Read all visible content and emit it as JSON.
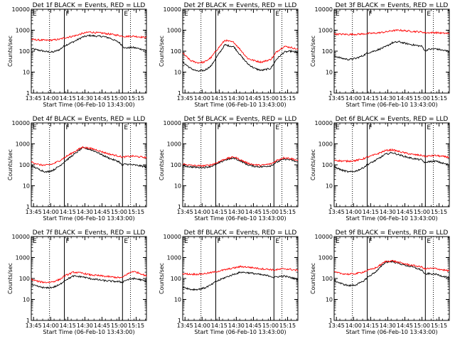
{
  "chart_data": {
    "type": "line",
    "layout": "3x3 grid",
    "yscale": "log",
    "ylim": [
      1,
      10000
    ],
    "xlim": [
      "13:43",
      "15:24"
    ],
    "ylabel": "Counts/sec",
    "xlabel": "Start Time (06-Feb-10 13:43:00)",
    "x_ticks": [
      "13:45",
      "14:00",
      "14:15",
      "14:30",
      "14:45",
      "15:00",
      "15:15"
    ],
    "y_ticks": [
      "1",
      "10",
      "100",
      "1000",
      "10000"
    ],
    "colors": {
      "events": "#000000",
      "lld": "#ff0000"
    },
    "panels": [
      {
        "title": "Det 1f BLACK = Events, RED = LLD",
        "flags": [
          {
            "time": "13:43",
            "label": "E"
          },
          {
            "time": "14:12",
            "label": "F"
          },
          {
            "time": "15:03",
            "label": "E"
          }
        ],
        "markers": [
          {
            "time": "13:59",
            "style": "dotted"
          },
          {
            "time": "14:12",
            "style": "solid"
          },
          {
            "time": "15:03",
            "style": "solid"
          },
          {
            "time": "15:10",
            "style": "dotted"
          }
        ],
        "x": [
          "13:43",
          "13:50",
          "13:56",
          "14:02",
          "14:08",
          "14:12",
          "14:20",
          "14:28",
          "14:34",
          "14:40",
          "14:46",
          "14:52",
          "15:00",
          "15:03",
          "15:05",
          "15:12",
          "15:18",
          "15:24"
        ],
        "series": [
          {
            "name": "Events",
            "values": [
              130,
              110,
              95,
              90,
              120,
              180,
              280,
              470,
              560,
              520,
              500,
              420,
              260,
              180,
              140,
              150,
              130,
              110
            ]
          },
          {
            "name": "LLD",
            "values": [
              360,
              340,
              330,
              340,
              370,
              430,
              520,
              700,
              820,
              760,
              720,
              650,
              560,
              520,
              500,
              520,
              480,
              450
            ]
          }
        ]
      },
      {
        "title": "Det 2f BLACK = Events, RED = LLD",
        "flags": [
          {
            "time": "13:43",
            "label": "E"
          },
          {
            "time": "14:12",
            "label": "F"
          },
          {
            "time": "15:03",
            "label": "E"
          }
        ],
        "markers": [
          {
            "time": "13:59",
            "style": "dotted"
          },
          {
            "time": "14:12",
            "style": "solid"
          },
          {
            "time": "15:03",
            "style": "solid"
          },
          {
            "time": "15:10",
            "style": "dotted"
          }
        ],
        "x": [
          "13:43",
          "13:50",
          "13:56",
          "14:02",
          "14:08",
          "14:12",
          "14:20",
          "14:28",
          "14:34",
          "14:40",
          "14:46",
          "14:52",
          "15:00",
          "15:03",
          "15:05",
          "15:12",
          "15:18",
          "15:24"
        ],
        "series": [
          {
            "name": "Events",
            "values": [
              30,
              15,
              11,
              12,
              20,
              45,
              200,
              160,
              60,
              25,
              15,
              12,
              15,
              25,
              40,
              90,
              100,
              80
            ]
          },
          {
            "name": "LLD",
            "values": [
              80,
              35,
              28,
              30,
              50,
              100,
              330,
              260,
              110,
              45,
              35,
              30,
              40,
              60,
              90,
              170,
              150,
              120
            ]
          }
        ]
      },
      {
        "title": "Det 3f BLACK = Events, RED = LLD",
        "flags": [
          {
            "time": "13:43",
            "label": "E"
          },
          {
            "time": "14:12",
            "label": "F"
          },
          {
            "time": "15:03",
            "label": "E"
          }
        ],
        "markers": [
          {
            "time": "13:59",
            "style": "dotted"
          },
          {
            "time": "14:12",
            "style": "solid"
          },
          {
            "time": "15:03",
            "style": "solid"
          },
          {
            "time": "15:10",
            "style": "dotted"
          }
        ],
        "x": [
          "13:43",
          "13:50",
          "13:56",
          "14:02",
          "14:08",
          "14:12",
          "14:20",
          "14:28",
          "14:34",
          "14:40",
          "14:46",
          "14:52",
          "15:00",
          "15:03",
          "15:05",
          "15:12",
          "15:18",
          "15:24"
        ],
        "series": [
          {
            "name": "Events",
            "values": [
              60,
              45,
              40,
              45,
              60,
              80,
              110,
              160,
              250,
              280,
              230,
              200,
              170,
              100,
              120,
              130,
              110,
              100
            ]
          },
          {
            "name": "LLD",
            "values": [
              650,
              640,
              630,
              640,
              660,
              690,
              730,
              820,
              950,
              1000,
              930,
              880,
              820,
              750,
              760,
              770,
              720,
              700
            ]
          }
        ]
      },
      {
        "title": "Det 4f BLACK = Events, RED = LLD",
        "flags": [
          {
            "time": "13:43",
            "label": "E"
          },
          {
            "time": "14:12",
            "label": "F"
          },
          {
            "time": "15:03",
            "label": "E"
          }
        ],
        "markers": [
          {
            "time": "13:59",
            "style": "dotted"
          },
          {
            "time": "14:12",
            "style": "solid"
          },
          {
            "time": "15:03",
            "style": "solid"
          },
          {
            "time": "15:10",
            "style": "dotted"
          }
        ],
        "x": [
          "13:43",
          "13:50",
          "13:56",
          "14:02",
          "14:08",
          "14:12",
          "14:20",
          "14:28",
          "14:34",
          "14:40",
          "14:46",
          "14:52",
          "15:00",
          "15:03",
          "15:05",
          "15:12",
          "15:18",
          "15:24"
        ],
        "series": [
          {
            "name": "Events",
            "values": [
              90,
              60,
              45,
              55,
              90,
              140,
              300,
              650,
              550,
              420,
              280,
              200,
              140,
              90,
              110,
              100,
              90,
              80
            ]
          },
          {
            "name": "LLD",
            "values": [
              140,
              100,
              95,
              110,
              160,
              220,
              400,
              700,
              620,
              520,
              400,
              320,
              260,
              230,
              240,
              260,
              240,
              220
            ]
          }
        ]
      },
      {
        "title": "Det 5f BLACK = Events, RED = LLD",
        "flags": [
          {
            "time": "13:43",
            "label": "E"
          },
          {
            "time": "14:12",
            "label": "F"
          },
          {
            "time": "15:03",
            "label": "E"
          }
        ],
        "markers": [
          {
            "time": "13:59",
            "style": "dotted"
          },
          {
            "time": "14:12",
            "style": "solid"
          },
          {
            "time": "15:03",
            "style": "solid"
          },
          {
            "time": "15:10",
            "style": "dotted"
          }
        ],
        "x": [
          "13:43",
          "13:50",
          "13:56",
          "14:02",
          "14:08",
          "14:12",
          "14:20",
          "14:28",
          "14:34",
          "14:40",
          "14:46",
          "14:52",
          "15:00",
          "15:03",
          "15:05",
          "15:12",
          "15:18",
          "15:24"
        ],
        "series": [
          {
            "name": "Events",
            "values": [
              90,
              80,
              75,
              75,
              85,
              100,
              170,
              210,
              150,
              100,
              85,
              80,
              90,
              110,
              130,
              190,
              170,
              130
            ]
          },
          {
            "name": "LLD",
            "values": [
              110,
              95,
              90,
              90,
              100,
              120,
              190,
              240,
              170,
              120,
              100,
              95,
              110,
              130,
              160,
              220,
              200,
              160
            ]
          }
        ]
      },
      {
        "title": "Det 6f BLACK = Events, RED = LLD",
        "flags": [
          {
            "time": "13:43",
            "label": "E"
          },
          {
            "time": "14:12",
            "label": "F"
          },
          {
            "time": "15:03",
            "label": "E"
          }
        ],
        "markers": [
          {
            "time": "13:59",
            "style": "dotted"
          },
          {
            "time": "14:12",
            "style": "solid"
          },
          {
            "time": "15:03",
            "style": "solid"
          },
          {
            "time": "15:10",
            "style": "dotted"
          }
        ],
        "x": [
          "13:43",
          "13:50",
          "13:56",
          "14:02",
          "14:08",
          "14:12",
          "14:20",
          "14:28",
          "14:34",
          "14:40",
          "14:46",
          "14:52",
          "15:00",
          "15:03",
          "15:05",
          "15:12",
          "15:18",
          "15:24"
        ],
        "series": [
          {
            "name": "Events",
            "values": [
              80,
              55,
              45,
              50,
              70,
              100,
              170,
              320,
              380,
              300,
              240,
              200,
              170,
              120,
              140,
              150,
              120,
              100
            ]
          },
          {
            "name": "LLD",
            "values": [
              170,
              150,
              150,
              160,
              190,
              230,
              320,
              480,
              520,
              430,
              360,
              310,
              280,
              250,
              260,
              280,
              250,
              230
            ]
          }
        ]
      },
      {
        "title": "Det 7f BLACK = Events, RED = LLD",
        "flags": [
          {
            "time": "13:43",
            "label": "E"
          },
          {
            "time": "14:12",
            "label": "F"
          },
          {
            "time": "15:03",
            "label": "E"
          }
        ],
        "markers": [
          {
            "time": "13:59",
            "style": "dotted"
          },
          {
            "time": "14:12",
            "style": "solid"
          },
          {
            "time": "15:03",
            "style": "solid"
          },
          {
            "time": "15:10",
            "style": "dotted"
          }
        ],
        "x": [
          "13:43",
          "13:50",
          "13:56",
          "14:02",
          "14:08",
          "14:12",
          "14:20",
          "14:28",
          "14:34",
          "14:40",
          "14:46",
          "14:52",
          "15:00",
          "15:03",
          "15:05",
          "15:12",
          "15:18",
          "15:24"
        ],
        "series": [
          {
            "name": "Events",
            "values": [
              50,
              40,
              35,
              38,
              50,
              80,
              130,
              120,
              100,
              90,
              80,
              75,
              70,
              65,
              80,
              100,
              90,
              70
            ]
          },
          {
            "name": "LLD",
            "values": [
              90,
              70,
              65,
              70,
              90,
              130,
              200,
              180,
              150,
              140,
              130,
              120,
              110,
              110,
              140,
              220,
              180,
              130
            ]
          }
        ]
      },
      {
        "title": "Det 8f BLACK = Events, RED = LLD",
        "flags": [
          {
            "time": "13:43",
            "label": "E"
          },
          {
            "time": "14:12",
            "label": "F"
          },
          {
            "time": "15:03",
            "label": "E"
          }
        ],
        "markers": [
          {
            "time": "13:59",
            "style": "dotted"
          },
          {
            "time": "14:12",
            "style": "solid"
          },
          {
            "time": "15:03",
            "style": "solid"
          },
          {
            "time": "15:10",
            "style": "dotted"
          }
        ],
        "x": [
          "13:43",
          "13:50",
          "13:56",
          "14:02",
          "14:08",
          "14:12",
          "14:20",
          "14:28",
          "14:34",
          "14:40",
          "14:46",
          "14:52",
          "15:00",
          "15:03",
          "15:05",
          "15:12",
          "15:18",
          "15:24"
        ],
        "series": [
          {
            "name": "Events",
            "values": [
              40,
              30,
              30,
              35,
              50,
              70,
              110,
              160,
              200,
              190,
              170,
              150,
              130,
              110,
              120,
              130,
              110,
              90
            ]
          },
          {
            "name": "LLD",
            "values": [
              170,
              160,
              160,
              170,
              190,
              210,
              260,
              320,
              370,
              350,
              320,
              290,
              270,
              250,
              260,
              290,
              270,
              240
            ]
          }
        ]
      },
      {
        "title": "Det 9f BLACK = Events, RED = LLD",
        "flags": [
          {
            "time": "13:43",
            "label": "E"
          },
          {
            "time": "14:12",
            "label": "F"
          },
          {
            "time": "15:03",
            "label": "E"
          }
        ],
        "markers": [
          {
            "time": "13:59",
            "style": "dotted"
          },
          {
            "time": "14:12",
            "style": "solid"
          },
          {
            "time": "15:03",
            "style": "solid"
          },
          {
            "time": "15:10",
            "style": "dotted"
          }
        ],
        "x": [
          "13:43",
          "13:50",
          "13:56",
          "14:02",
          "14:08",
          "14:12",
          "14:20",
          "14:28",
          "14:34",
          "14:40",
          "14:46",
          "14:52",
          "15:00",
          "15:03",
          "15:05",
          "15:12",
          "15:18",
          "15:24"
        ],
        "series": [
          {
            "name": "Events",
            "values": [
              80,
              55,
              45,
              50,
              70,
              110,
              220,
              600,
              650,
              520,
              420,
              350,
              250,
              150,
              170,
              160,
              130,
              110
            ]
          },
          {
            "name": "LLD",
            "values": [
              200,
              170,
              160,
              170,
              200,
              240,
              330,
              650,
              700,
              580,
              480,
              420,
              350,
              280,
              300,
              300,
              260,
              230
            ]
          }
        ]
      }
    ]
  }
}
